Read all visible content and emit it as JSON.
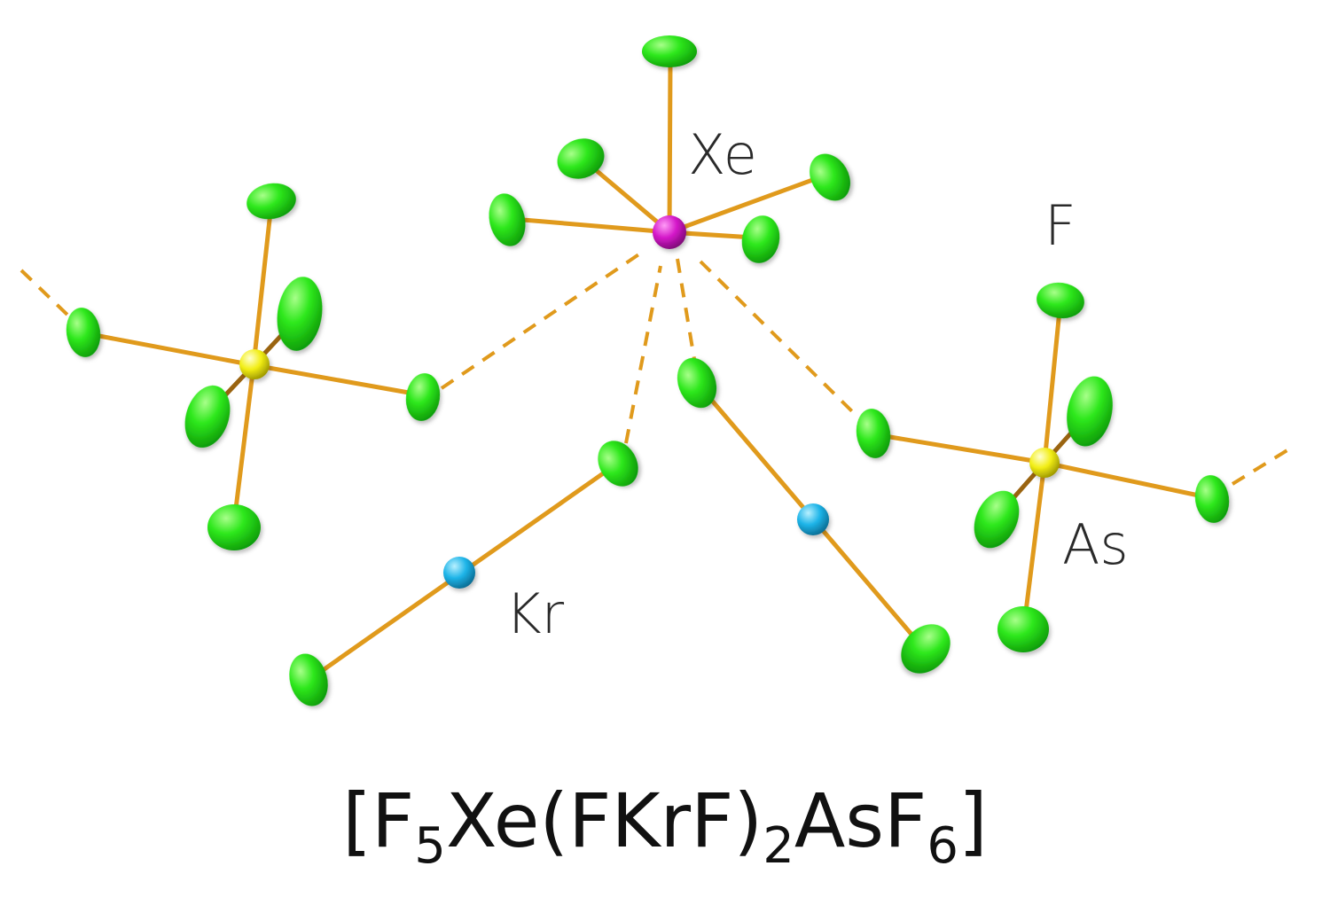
{
  "labels": {
    "xe": "Xe",
    "f": "F",
    "kr": "Kr",
    "as": "As"
  },
  "formula": {
    "part1": "[F",
    "sub1": "5",
    "part2": "Xe(FKrF)",
    "sub2": "2",
    "part3": "AsF",
    "sub3": "6",
    "part4": "]"
  },
  "colors": {
    "fluorine": "#22e01a",
    "xenon": "#d316c8",
    "krypton": "#1db4e8",
    "arsenic": "#f2ee14",
    "bond": "#e09a1c"
  }
}
